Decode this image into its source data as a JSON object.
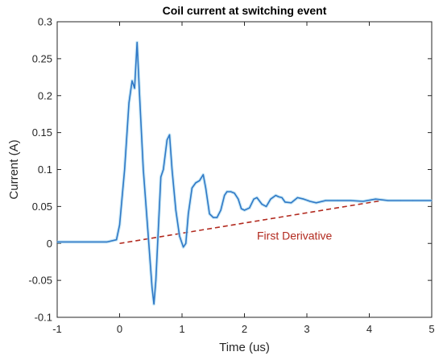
{
  "chart_data": {
    "type": "line",
    "title": "Coil current at switching event",
    "xlabel": "Time (us)",
    "ylabel": "Current (A)",
    "xlim": [
      -1,
      5
    ],
    "ylim": [
      -0.1,
      0.3
    ],
    "x_ticks": [
      "-1",
      "0",
      "1",
      "2",
      "3",
      "4",
      "5"
    ],
    "y_ticks": [
      "-0.1",
      "-0.05",
      "0",
      "0.05",
      "0.1",
      "0.15",
      "0.2",
      "0.25",
      "0.3"
    ],
    "grid": false,
    "series": [
      {
        "color": "#2f78c6",
        "x": [
          -1.0,
          -0.2,
          -0.05,
          0.0,
          0.08,
          0.15,
          0.2,
          0.24,
          0.28,
          0.32,
          0.38,
          0.45,
          0.52,
          0.55,
          0.58,
          0.62,
          0.66,
          0.7,
          0.76,
          0.8,
          0.84,
          0.9,
          0.96,
          1.02,
          1.06,
          1.1,
          1.16,
          1.22,
          1.28,
          1.34,
          1.38,
          1.44,
          1.5,
          1.56,
          1.62,
          1.68,
          1.72,
          1.78,
          1.84,
          1.9,
          1.95,
          2.0,
          2.08,
          2.15,
          2.2,
          2.28,
          2.35,
          2.42,
          2.5,
          2.55,
          2.6,
          2.65,
          2.75,
          2.85,
          2.95,
          3.05,
          3.15,
          3.3,
          3.5,
          3.7,
          3.9,
          4.1,
          4.3,
          4.5,
          4.7,
          5.0
        ],
        "y": [
          0.002,
          0.002,
          0.005,
          0.025,
          0.1,
          0.19,
          0.22,
          0.21,
          0.272,
          0.2,
          0.1,
          0.02,
          -0.06,
          -0.082,
          -0.05,
          0.02,
          0.09,
          0.1,
          0.14,
          0.147,
          0.1,
          0.045,
          0.01,
          -0.005,
          0.0,
          0.04,
          0.075,
          0.082,
          0.085,
          0.093,
          0.075,
          0.04,
          0.035,
          0.035,
          0.045,
          0.065,
          0.07,
          0.07,
          0.068,
          0.06,
          0.047,
          0.045,
          0.048,
          0.06,
          0.062,
          0.053,
          0.05,
          0.06,
          0.065,
          0.063,
          0.062,
          0.056,
          0.055,
          0.062,
          0.06,
          0.057,
          0.055,
          0.058,
          0.058,
          0.058,
          0.057,
          0.06,
          0.058,
          0.058,
          0.058,
          0.058
        ]
      }
    ],
    "annotations": [
      {
        "text": "First Derivative",
        "color": "#b22a1f",
        "at": [
          2.2,
          0.005
        ],
        "line_from": [
          0.0,
          0.0
        ],
        "line_to": [
          4.2,
          0.058
        ],
        "line_style": "dashed"
      }
    ]
  }
}
